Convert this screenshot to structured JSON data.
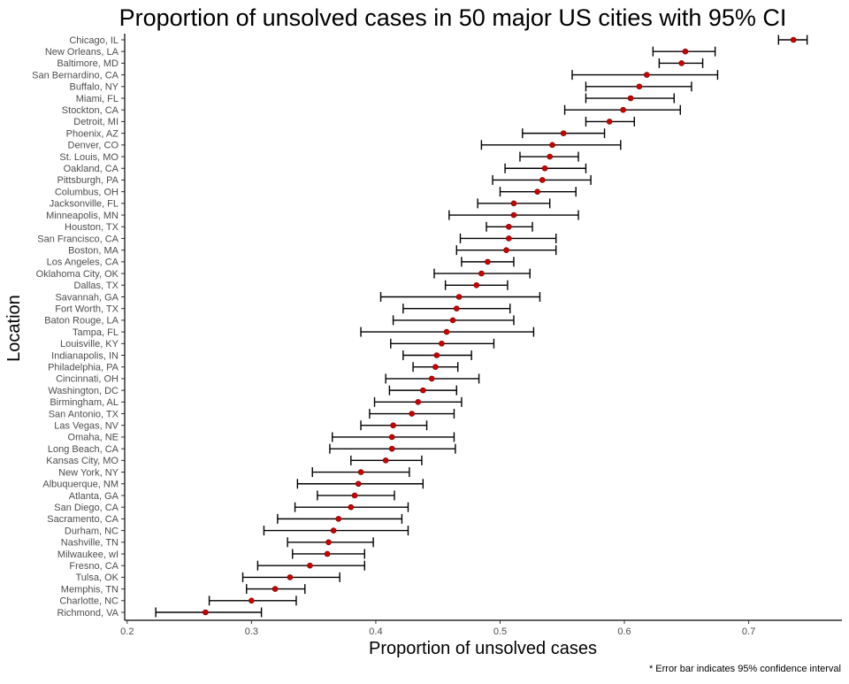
{
  "chart_data": {
    "type": "scatter",
    "title": "Proportion of unsolved cases in 50 major US cities with 95% CI",
    "xlabel": "Proportion of unsolved cases",
    "ylabel": "Location",
    "caption": "* Error bar indicates 95% confidence interval",
    "xlim": [
      0.198,
      0.775
    ],
    "xticks": [
      0.2,
      0.3,
      0.4,
      0.5,
      0.6,
      0.7
    ],
    "xtick_labels": [
      "0.2",
      "0.3",
      "0.4",
      "0.5",
      "0.6",
      "0.7"
    ],
    "grid": false,
    "legend": "none",
    "colors": {
      "point": "#cc0000",
      "errorbar": "#000000",
      "axis": "#000000"
    },
    "series": [
      {
        "points": [
          {
            "city": "Chicago, IL",
            "estimate": 0.736,
            "lower": 0.724,
            "upper": 0.747
          },
          {
            "city": "New Orleans, LA",
            "estimate": 0.649,
            "lower": 0.623,
            "upper": 0.673
          },
          {
            "city": "Baltimore, MD",
            "estimate": 0.646,
            "lower": 0.628,
            "upper": 0.663
          },
          {
            "city": "San Bernardino, CA",
            "estimate": 0.618,
            "lower": 0.558,
            "upper": 0.675
          },
          {
            "city": "Buffalo, NY",
            "estimate": 0.612,
            "lower": 0.569,
            "upper": 0.654
          },
          {
            "city": "Miami, FL",
            "estimate": 0.605,
            "lower": 0.569,
            "upper": 0.64
          },
          {
            "city": "Stockton, CA",
            "estimate": 0.599,
            "lower": 0.552,
            "upper": 0.645
          },
          {
            "city": "Detroit, MI",
            "estimate": 0.588,
            "lower": 0.569,
            "upper": 0.608
          },
          {
            "city": "Phoenix, AZ",
            "estimate": 0.551,
            "lower": 0.518,
            "upper": 0.584
          },
          {
            "city": "Denver, CO",
            "estimate": 0.542,
            "lower": 0.485,
            "upper": 0.597
          },
          {
            "city": "St. Louis, MO",
            "estimate": 0.54,
            "lower": 0.516,
            "upper": 0.563
          },
          {
            "city": "Oakland, CA",
            "estimate": 0.536,
            "lower": 0.504,
            "upper": 0.569
          },
          {
            "city": "Pittsburgh, PA",
            "estimate": 0.534,
            "lower": 0.494,
            "upper": 0.573
          },
          {
            "city": "Columbus, OH",
            "estimate": 0.53,
            "lower": 0.5,
            "upper": 0.561
          },
          {
            "city": "Jacksonville, FL",
            "estimate": 0.511,
            "lower": 0.482,
            "upper": 0.54
          },
          {
            "city": "Minneapolis, MN",
            "estimate": 0.511,
            "lower": 0.459,
            "upper": 0.563
          },
          {
            "city": "Houston, TX",
            "estimate": 0.507,
            "lower": 0.489,
            "upper": 0.526
          },
          {
            "city": "San Francisco, CA",
            "estimate": 0.507,
            "lower": 0.468,
            "upper": 0.545
          },
          {
            "city": "Boston, MA",
            "estimate": 0.505,
            "lower": 0.465,
            "upper": 0.545
          },
          {
            "city": "Los Angeles, CA",
            "estimate": 0.49,
            "lower": 0.469,
            "upper": 0.511
          },
          {
            "city": "Oklahoma City, OK",
            "estimate": 0.485,
            "lower": 0.447,
            "upper": 0.524
          },
          {
            "city": "Dallas, TX",
            "estimate": 0.481,
            "lower": 0.456,
            "upper": 0.506
          },
          {
            "city": "Savannah, GA",
            "estimate": 0.467,
            "lower": 0.404,
            "upper": 0.532
          },
          {
            "city": "Fort Worth, TX",
            "estimate": 0.465,
            "lower": 0.422,
            "upper": 0.508
          },
          {
            "city": "Baton Rouge, LA",
            "estimate": 0.462,
            "lower": 0.414,
            "upper": 0.511
          },
          {
            "city": "Tampa, FL",
            "estimate": 0.457,
            "lower": 0.388,
            "upper": 0.527
          },
          {
            "city": "Louisville, KY",
            "estimate": 0.453,
            "lower": 0.412,
            "upper": 0.495
          },
          {
            "city": "Indianapolis, IN",
            "estimate": 0.449,
            "lower": 0.422,
            "upper": 0.477
          },
          {
            "city": "Philadelphia, PA",
            "estimate": 0.448,
            "lower": 0.43,
            "upper": 0.466
          },
          {
            "city": "Cincinnati, OH",
            "estimate": 0.445,
            "lower": 0.408,
            "upper": 0.483
          },
          {
            "city": "Washington, DC",
            "estimate": 0.438,
            "lower": 0.411,
            "upper": 0.465
          },
          {
            "city": "Birmingham, AL",
            "estimate": 0.434,
            "lower": 0.399,
            "upper": 0.469
          },
          {
            "city": "San Antonio, TX",
            "estimate": 0.429,
            "lower": 0.395,
            "upper": 0.463
          },
          {
            "city": "Las Vegas, NV",
            "estimate": 0.414,
            "lower": 0.388,
            "upper": 0.441
          },
          {
            "city": "Omaha, NE",
            "estimate": 0.413,
            "lower": 0.365,
            "upper": 0.463
          },
          {
            "city": "Long Beach, CA",
            "estimate": 0.413,
            "lower": 0.363,
            "upper": 0.464
          },
          {
            "city": "Kansas City, MO",
            "estimate": 0.408,
            "lower": 0.38,
            "upper": 0.437
          },
          {
            "city": "New York, NY",
            "estimate": 0.388,
            "lower": 0.349,
            "upper": 0.427
          },
          {
            "city": "Albuquerque, NM",
            "estimate": 0.386,
            "lower": 0.337,
            "upper": 0.438
          },
          {
            "city": "Atlanta, GA",
            "estimate": 0.383,
            "lower": 0.353,
            "upper": 0.415
          },
          {
            "city": "San Diego, CA",
            "estimate": 0.38,
            "lower": 0.335,
            "upper": 0.426
          },
          {
            "city": "Sacramento, CA",
            "estimate": 0.37,
            "lower": 0.321,
            "upper": 0.421
          },
          {
            "city": "Durham, NC",
            "estimate": 0.366,
            "lower": 0.31,
            "upper": 0.426
          },
          {
            "city": "Nashville, TN",
            "estimate": 0.362,
            "lower": 0.329,
            "upper": 0.398
          },
          {
            "city": "Milwaukee, wI",
            "estimate": 0.361,
            "lower": 0.333,
            "upper": 0.391
          },
          {
            "city": "Fresno, CA",
            "estimate": 0.347,
            "lower": 0.305,
            "upper": 0.391
          },
          {
            "city": "Tulsa, OK",
            "estimate": 0.331,
            "lower": 0.293,
            "upper": 0.371
          },
          {
            "city": "Memphis, TN",
            "estimate": 0.319,
            "lower": 0.296,
            "upper": 0.343
          },
          {
            "city": "Charlotte, NC",
            "estimate": 0.3,
            "lower": 0.266,
            "upper": 0.336
          },
          {
            "city": "Richmond, VA",
            "estimate": 0.263,
            "lower": 0.223,
            "upper": 0.308
          }
        ]
      }
    ]
  }
}
